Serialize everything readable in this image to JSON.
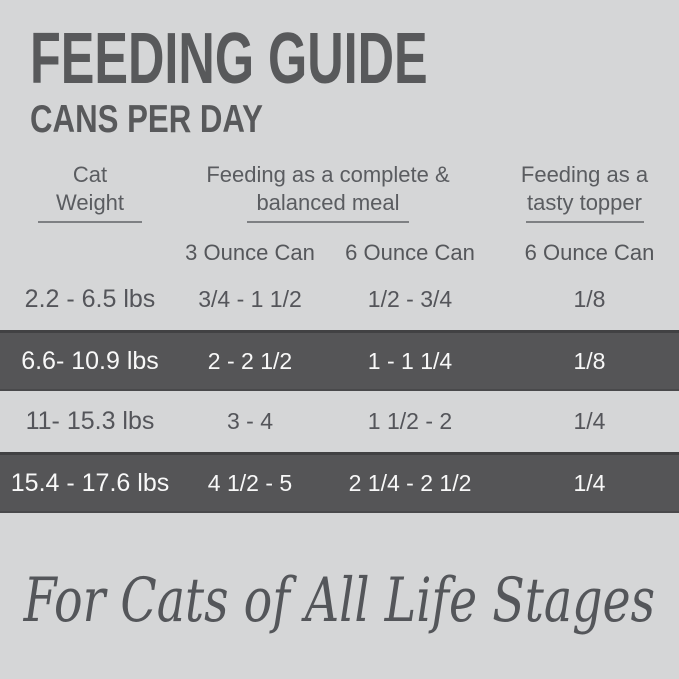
{
  "page": {
    "title": "FEEDING GUIDE",
    "subtitle": "CANS PER DAY",
    "footer_script": "For Cats of All Life Stages"
  },
  "table": {
    "groups": [
      {
        "line1": "Cat",
        "line2": "Weight"
      },
      {
        "line1": "Feeding as a complete &",
        "line2": "balanced meal"
      },
      {
        "line1": "Feeding as a",
        "line2": "tasty topper"
      }
    ],
    "can_headers": [
      "3 Ounce Can",
      "6 Ounce Can",
      "6 Ounce Can"
    ],
    "rows": [
      {
        "highlighted": false,
        "cells": [
          "2.2 - 6.5 lbs",
          "3/4 - 1 1/2",
          "1/2 - 3/4",
          "1/8"
        ]
      },
      {
        "highlighted": true,
        "cells": [
          "6.6- 10.9 lbs",
          "2 - 2 1/2",
          "1 - 1 1/4",
          "1/8"
        ]
      },
      {
        "highlighted": false,
        "cells": [
          "11- 15.3 lbs",
          "3 - 4",
          "1 1/2 - 2",
          "1/4"
        ]
      },
      {
        "highlighted": true,
        "cells": [
          "15.4 - 17.6 lbs",
          "4 1/2 - 5",
          "2 1/4 - 2 1/2",
          "1/4"
        ]
      }
    ]
  },
  "colors": {
    "background": "#d5d6d7",
    "title_text": "#58595b",
    "header_text": "#5a5c60",
    "body_text": "#54555a",
    "dark_row_background": "#555557",
    "dark_row_text": "#f8f8f8",
    "underline": "#7e8083"
  }
}
